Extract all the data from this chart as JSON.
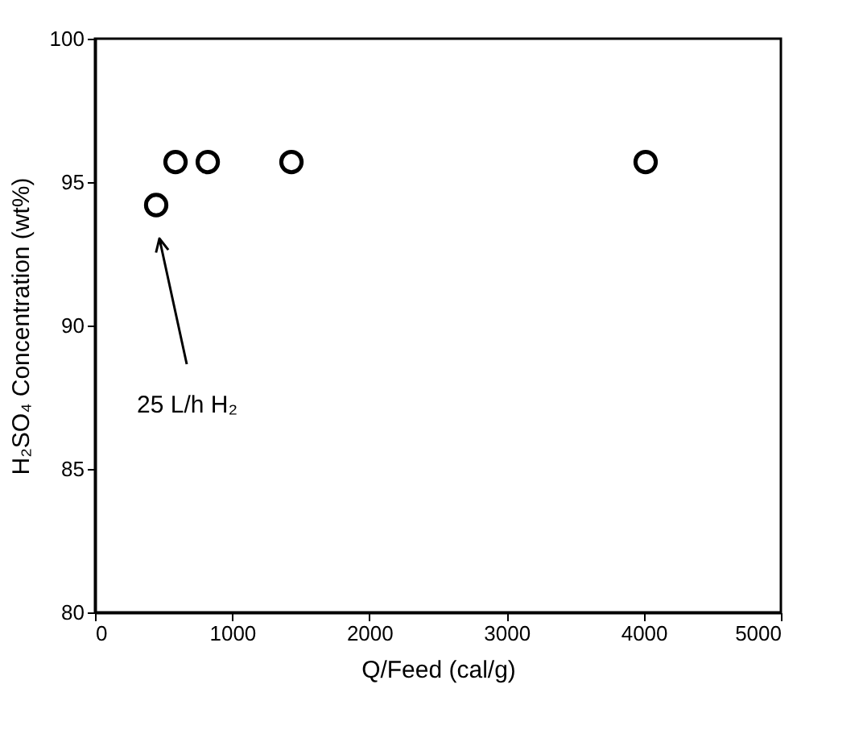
{
  "chart_data": {
    "type": "scatter",
    "xlabel": "Q/Feed (cal/g)",
    "ylabel": "H₂SO₄ Concentration (wt%)",
    "x": [
      446,
      587,
      822,
      1432,
      4014
    ],
    "series": [
      {
        "color": "#000000",
        "values": [
          94.2,
          95.7,
          95.7,
          95.7,
          95.7
        ]
      }
    ],
    "xlim": [
      0,
      5000
    ],
    "xticks": [
      0,
      1000,
      2000,
      3000,
      4000,
      5000
    ],
    "ylim": [
      80,
      100
    ],
    "yticks": [
      80,
      85,
      90,
      95,
      100
    ],
    "grid": false,
    "marker": "circle",
    "legend": false,
    "annotations": [
      "25 L/h H₂"
    ]
  }
}
